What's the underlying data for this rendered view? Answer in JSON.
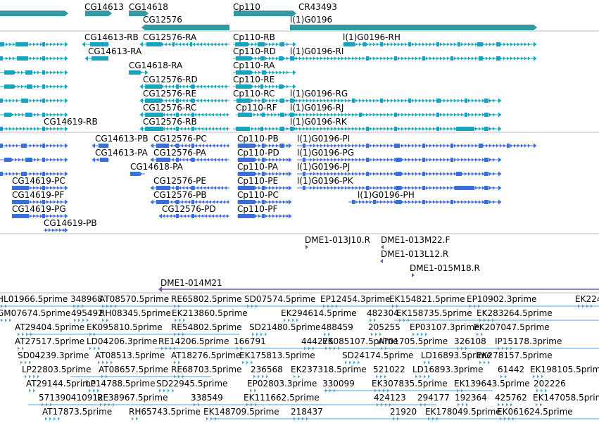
{
  "colors": {
    "gene_teal": "#1591a5",
    "gene_band": "#2f9aa2",
    "transcript_teal": "#1aa3c0",
    "protein_blue": "#3b6fd8",
    "est_lightblue": "#4ea3d8",
    "purple": "#7a4fb0",
    "divider": "#bdbdbd"
  },
  "tracks": {
    "genes": {
      "labels": [
        "CG14613",
        "CG14618",
        "CG12576",
        "Cp110",
        "CR43493",
        "l(1)G0196"
      ]
    },
    "transcripts": {
      "labels": [
        "CG14613-RB",
        "CG12576-RA",
        "Cp110-RB",
        "l(1)G0196-RH",
        "CG14613-RA",
        "Cp110-RD",
        "l(1)G0196-RI",
        "CG14618-RA",
        "Cp110-RA",
        "CG12576-RD",
        "Cp110-RE",
        "CG12576-RE",
        "Cp110-RC",
        "l(1)G0196-RG",
        "CG12576-RC",
        "Cp110-RF",
        "l(1)G0196-RJ",
        "CG14619-RB",
        "CG12576-RB",
        "l(1)G0196-RK"
      ]
    },
    "proteins": {
      "labels": [
        "CG14613-PB",
        "CG12576-PC",
        "Cp110-PB",
        "l(1)G0196-PI",
        "CG14613-PA",
        "CG12576-PA",
        "Cp110-PD",
        "l(1)G0196-PG",
        "CG14618-PA",
        "Cp110-PA",
        "l(1)G0196-PJ",
        "CG14619-PC",
        "CG12576-PE",
        "Cp110-PE",
        "l(1)G0196-PK",
        "CG14619-PF",
        "CG12576-PB",
        "Cp110-PC",
        "l(1)G0196-PH",
        "CG14619-PG",
        "CG12576-PD",
        "Cp110-PF",
        "CG14619-PB"
      ]
    },
    "clones": {
      "labels": [
        "DME1-013J10.R",
        "DME1-013M22.F",
        "DME1-013L12.R",
        "DME1-015M18.R",
        "DME1-014M21"
      ]
    },
    "ests": {
      "rows": [
        [
          "HL01966.5prime",
          "348968",
          "AT08570.5prime",
          "RE65802.5prime",
          "SD07574.5prime",
          "EP12454.3prime",
          "EK154821.5prime",
          "EP10902.3prime",
          "EK224"
        ],
        [
          "GM07674.5prime",
          "495492",
          "RH08345.5prime",
          "EK213860.5prime",
          "EK294614.5prime",
          "482304",
          "EK158735.5prime",
          "EK283264.5prime"
        ],
        [
          "AT29404.5prime",
          "EK095810.5prime",
          "RE54802.5prime",
          "SD21480.5prime",
          "488459",
          "205255",
          "EP03107.3prime",
          "EK207047.5prime"
        ],
        [
          "AT27517.5prime",
          "LD04206.3prime",
          "RE14206.5prime",
          "166791",
          "444275",
          "EK085107.5prime",
          "AT01705.5prime",
          "326108",
          "IP15178.3prime"
        ],
        [
          "SD04239.3prime",
          "AT08513.5prime",
          "AT18276.5prime",
          "EK175813.5prime",
          "SD24174.5prime",
          "LD16893.5prime",
          "EK278157.5prime"
        ],
        [
          "LP22803.5prime",
          "AT08657.5prime",
          "RE68703.5prime",
          "236568",
          "EK237318.5prime",
          "521022",
          "LD16893.3prime",
          "61442",
          "EK198105.5prime"
        ],
        [
          "AT29144.5prime",
          "LP14788.5prime",
          "SD22945.5prime",
          "EP02803.3prime",
          "330099",
          "EK307835.5prime",
          "EK139643.5prime",
          "202226"
        ],
        [
          "571390410912",
          "RE38967.5prime",
          "338549",
          "EK111662.5prime",
          "424123",
          "294177",
          "192364",
          "425762",
          "EK147058.5prime"
        ],
        [
          "AT17873.5prime",
          "RH65743.5prime",
          "EK148709.5prime",
          "218437",
          "21920",
          "EK178049.5prime",
          "EK061624.5prime"
        ]
      ]
    }
  }
}
